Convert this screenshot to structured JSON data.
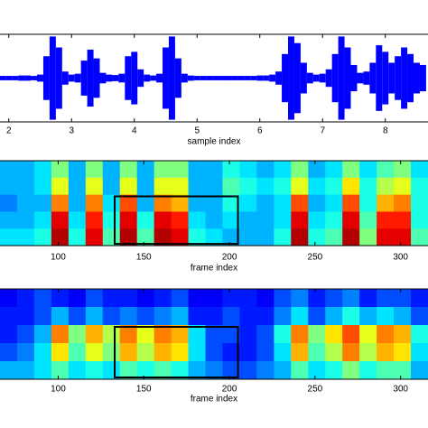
{
  "chart_data": [
    {
      "type": "waveform",
      "xlabel": "sample index",
      "color": "#0000ff",
      "xlim": [
        1.86,
        8.68
      ],
      "ylim": [
        -1,
        1
      ],
      "xticks": [
        2,
        3,
        4,
        5,
        6,
        7,
        8
      ],
      "x": [
        1.9,
        2.0,
        2.1,
        2.2,
        2.3,
        2.4,
        2.5,
        2.6,
        2.7,
        2.8,
        2.9,
        3.0,
        3.1,
        3.2,
        3.3,
        3.4,
        3.5,
        3.6,
        3.7,
        3.8,
        3.9,
        4.0,
        4.1,
        4.2,
        4.3,
        4.4,
        4.5,
        4.6,
        4.7,
        4.8,
        4.9,
        5.0,
        5.1,
        5.2,
        5.3,
        5.4,
        5.5,
        5.6,
        5.7,
        5.8,
        5.9,
        6.0,
        6.1,
        6.2,
        6.3,
        6.4,
        6.5,
        6.6,
        6.7,
        6.8,
        6.9,
        7.0,
        7.1,
        7.2,
        7.3,
        7.4,
        7.5,
        7.6,
        7.7,
        7.8,
        7.9,
        8.0,
        8.1,
        8.2,
        8.3,
        8.4,
        8.5,
        8.6
      ],
      "values": [
        0.05,
        0.05,
        0.05,
        0.06,
        0.06,
        0.05,
        0.08,
        0.5,
        0.95,
        0.7,
        0.15,
        0.08,
        0.1,
        0.4,
        0.65,
        0.45,
        0.12,
        0.08,
        0.07,
        0.1,
        0.5,
        0.6,
        0.2,
        0.08,
        0.06,
        0.1,
        0.7,
        0.95,
        0.45,
        0.1,
        0.06,
        0.05,
        0.05,
        0.05,
        0.05,
        0.05,
        0.05,
        0.05,
        0.05,
        0.05,
        0.05,
        0.06,
        0.06,
        0.08,
        0.15,
        0.55,
        0.95,
        0.8,
        0.35,
        0.12,
        0.08,
        0.1,
        0.2,
        0.55,
        0.95,
        0.7,
        0.3,
        0.12,
        0.15,
        0.35,
        0.75,
        0.6,
        0.35,
        0.5,
        0.7,
        0.55,
        0.35,
        0.3
      ]
    },
    {
      "type": "heatmap",
      "xlabel": "frame index",
      "xlim": [
        66,
        316
      ],
      "xticks": [
        100,
        150,
        200,
        250,
        300
      ],
      "x_edges": [
        66,
        76,
        86,
        96,
        106,
        116,
        126,
        136,
        146,
        156,
        166,
        176,
        186,
        196,
        206,
        216,
        226,
        236,
        246,
        256,
        266,
        276,
        286,
        296,
        306,
        316
      ],
      "highlight": [
        133,
        205
      ],
      "values": [
        [
          0.3,
          0.3,
          0.35,
          0.5,
          0.3,
          0.5,
          0.3,
          0.5,
          0.3,
          0.5,
          0.5,
          0.3,
          0.3,
          0.4,
          0.35,
          0.3,
          0.35,
          0.5,
          0.3,
          0.35,
          0.5,
          0.35,
          0.45,
          0.5,
          0.35
        ],
        [
          0.3,
          0.3,
          0.35,
          0.6,
          0.3,
          0.6,
          0.3,
          0.6,
          0.3,
          0.6,
          0.6,
          0.3,
          0.3,
          0.45,
          0.4,
          0.35,
          0.4,
          0.6,
          0.35,
          0.4,
          0.65,
          0.4,
          0.55,
          0.6,
          0.4
        ],
        [
          0.25,
          0.3,
          0.3,
          0.75,
          0.3,
          0.75,
          0.35,
          0.8,
          0.3,
          0.75,
          0.7,
          0.3,
          0.3,
          0.4,
          0.35,
          0.3,
          0.35,
          0.8,
          0.3,
          0.35,
          0.8,
          0.4,
          0.7,
          0.75,
          0.4
        ],
        [
          0.3,
          0.3,
          0.35,
          0.9,
          0.35,
          0.85,
          0.4,
          0.9,
          0.4,
          0.9,
          0.85,
          0.35,
          0.3,
          0.35,
          0.3,
          0.3,
          0.35,
          0.9,
          0.35,
          0.4,
          0.9,
          0.45,
          0.85,
          0.85,
          0.4
        ],
        [
          0.35,
          0.35,
          0.4,
          0.95,
          0.4,
          0.9,
          0.45,
          0.95,
          0.45,
          0.95,
          0.9,
          0.4,
          0.35,
          0.3,
          0.3,
          0.3,
          0.4,
          0.95,
          0.4,
          0.45,
          0.95,
          0.5,
          0.9,
          0.9,
          0.45
        ]
      ]
    },
    {
      "type": "heatmap",
      "xlabel": "frame index",
      "xlim": [
        66,
        316
      ],
      "xticks": [
        100,
        150,
        200,
        250,
        300
      ],
      "x_edges": [
        66,
        76,
        86,
        96,
        106,
        116,
        126,
        136,
        146,
        156,
        166,
        176,
        186,
        196,
        206,
        216,
        226,
        236,
        246,
        256,
        266,
        276,
        286,
        296,
        306,
        316
      ],
      "highlight": [
        133,
        205
      ],
      "values": [
        [
          0.12,
          0.15,
          0.2,
          0.15,
          0.12,
          0.2,
          0.15,
          0.15,
          0.12,
          0.15,
          0.2,
          0.12,
          0.12,
          0.15,
          0.15,
          0.12,
          0.2,
          0.25,
          0.15,
          0.2,
          0.25,
          0.15,
          0.2,
          0.2,
          0.15
        ],
        [
          0.15,
          0.15,
          0.2,
          0.3,
          0.2,
          0.3,
          0.2,
          0.25,
          0.2,
          0.25,
          0.3,
          0.15,
          0.15,
          0.2,
          0.15,
          0.15,
          0.25,
          0.35,
          0.2,
          0.3,
          0.4,
          0.3,
          0.35,
          0.3,
          0.2
        ],
        [
          0.15,
          0.2,
          0.3,
          0.75,
          0.5,
          0.7,
          0.55,
          0.75,
          0.6,
          0.75,
          0.7,
          0.35,
          0.2,
          0.2,
          0.15,
          0.2,
          0.4,
          0.75,
          0.5,
          0.65,
          0.8,
          0.6,
          0.75,
          0.7,
          0.4
        ],
        [
          0.2,
          0.25,
          0.35,
          0.65,
          0.45,
          0.6,
          0.5,
          0.7,
          0.55,
          0.7,
          0.65,
          0.35,
          0.2,
          0.15,
          0.15,
          0.2,
          0.35,
          0.7,
          0.45,
          0.55,
          0.75,
          0.55,
          0.7,
          0.65,
          0.35
        ],
        [
          0.3,
          0.3,
          0.35,
          0.45,
          0.35,
          0.4,
          0.35,
          0.45,
          0.4,
          0.45,
          0.4,
          0.3,
          0.25,
          0.2,
          0.2,
          0.25,
          0.3,
          0.45,
          0.35,
          0.4,
          0.5,
          0.4,
          0.45,
          0.45,
          0.3
        ]
      ]
    }
  ]
}
